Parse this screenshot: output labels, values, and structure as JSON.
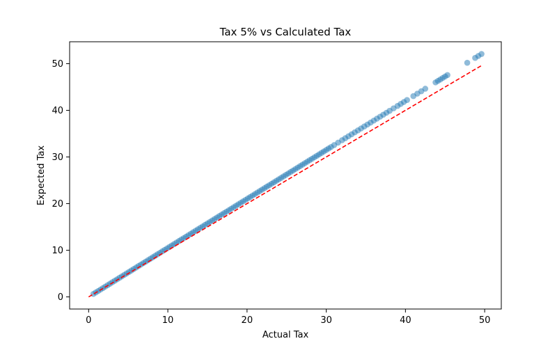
{
  "chart_data": {
    "type": "scatter",
    "title": "Tax 5% vs Calculated Tax",
    "xlabel": "Actual Tax",
    "ylabel": "Expected Tax",
    "xlim": [
      -2.4,
      52.1
    ],
    "ylim": [
      -2.6,
      54.7
    ],
    "xticks": [
      0,
      10,
      20,
      30,
      40,
      50
    ],
    "yticks": [
      0,
      10,
      20,
      30,
      40,
      50
    ],
    "grid": false,
    "legend": "none",
    "point_color": "#1f77b4",
    "point_alpha": 0.5,
    "reference_line": {
      "x": [
        0,
        49.6
      ],
      "y": [
        0,
        49.6
      ],
      "color": "#ff0000",
      "style": "dashed"
    },
    "series": [
      {
        "x": [
          0.6,
          0.9,
          1.2,
          1.5,
          1.8,
          2.1,
          2.4,
          2.7,
          3.0,
          3.3,
          3.6,
          3.9,
          4.2,
          4.5,
          4.8,
          5.1,
          5.4,
          5.7,
          6.0,
          6.3,
          6.6,
          6.9,
          7.2,
          7.5,
          7.8,
          8.1,
          8.4,
          8.7,
          9.0,
          9.3,
          9.6,
          9.9,
          10.2,
          10.5,
          10.8,
          11.1,
          11.4,
          11.7,
          12.0,
          12.3,
          12.6,
          12.9,
          13.2,
          13.5,
          13.8,
          14.1,
          14.4,
          14.7,
          15.0,
          15.3,
          15.6,
          15.9,
          16.2,
          16.5,
          16.8,
          17.1,
          17.4,
          17.7,
          18.0,
          18.3,
          18.6,
          18.9,
          19.2,
          19.5,
          19.8,
          20.1,
          20.4,
          20.7,
          21.0,
          21.3,
          21.6,
          21.9,
          22.2,
          22.5,
          22.8,
          23.1,
          23.4,
          23.7,
          24.0,
          24.3,
          24.6,
          24.9,
          25.2,
          25.5,
          25.8,
          26.1,
          26.4,
          26.7,
          27.0,
          27.3,
          27.6,
          27.9,
          28.2,
          28.5,
          28.8,
          29.1,
          29.4,
          29.7,
          30.0,
          30.3,
          30.6,
          31.0,
          31.5,
          32.0,
          32.4,
          32.8,
          33.2,
          33.6,
          34.0,
          34.4,
          34.8,
          35.2,
          35.6,
          36.0,
          36.4,
          36.8,
          37.2,
          37.6,
          38.0,
          38.5,
          39.0,
          39.4,
          39.8,
          40.2,
          41.0,
          41.5,
          42.0,
          42.5,
          43.8,
          44.1,
          44.4,
          44.7,
          45.0,
          45.3,
          47.8,
          48.8,
          49.2,
          49.6
        ],
        "y": [
          0.63,
          0.95,
          1.26,
          1.58,
          1.89,
          2.21,
          2.52,
          2.84,
          3.15,
          3.47,
          3.78,
          4.1,
          4.41,
          4.73,
          5.04,
          5.36,
          5.67,
          5.99,
          6.3,
          6.62,
          6.93,
          7.25,
          7.56,
          7.88,
          8.19,
          8.51,
          8.82,
          9.14,
          9.45,
          9.77,
          10.08,
          10.4,
          10.71,
          11.03,
          11.34,
          11.66,
          11.97,
          12.29,
          12.6,
          12.92,
          13.23,
          13.55,
          13.86,
          14.18,
          14.49,
          14.81,
          15.12,
          15.44,
          15.75,
          16.07,
          16.38,
          16.7,
          17.01,
          17.33,
          17.64,
          17.96,
          18.27,
          18.59,
          18.9,
          19.22,
          19.53,
          19.85,
          20.16,
          20.48,
          20.79,
          21.11,
          21.42,
          21.74,
          22.05,
          22.37,
          22.68,
          23.0,
          23.31,
          23.63,
          23.94,
          24.26,
          24.57,
          24.89,
          25.2,
          25.52,
          25.83,
          26.15,
          26.46,
          26.78,
          27.09,
          27.41,
          27.72,
          28.04,
          28.35,
          28.67,
          28.98,
          29.3,
          29.61,
          29.93,
          30.24,
          30.56,
          30.87,
          31.19,
          31.5,
          31.82,
          32.13,
          32.55,
          33.08,
          33.6,
          34.02,
          34.44,
          34.86,
          35.28,
          35.7,
          36.12,
          36.54,
          36.96,
          37.38,
          37.8,
          38.22,
          38.64,
          39.06,
          39.48,
          39.9,
          40.43,
          40.95,
          41.37,
          41.79,
          42.21,
          43.05,
          43.58,
          44.1,
          44.63,
          45.99,
          46.31,
          46.62,
          46.94,
          47.25,
          47.57,
          50.19,
          51.24,
          51.66,
          52.08
        ]
      }
    ]
  }
}
